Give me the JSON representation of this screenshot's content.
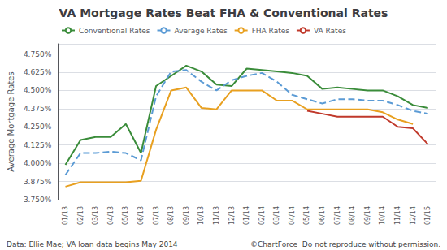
{
  "chart_data": {
    "type": "line",
    "title": "VA Mortgage Rates Beat FHA & Conventional Rates",
    "y_label": "Average Mortgage Rates",
    "annotations": [
      "Data: Ellie Mae; VA loan data begins May 2014",
      "©ChartForce  Do not reproduce without permission."
    ],
    "categories": [
      "01/13",
      "02/13",
      "03/13",
      "04/13",
      "05/13",
      "06/13",
      "07/13",
      "08/13",
      "09/13",
      "10/13",
      "11/13",
      "12/13",
      "01/14",
      "02/14",
      "03/14",
      "04/14",
      "05/14",
      "06/14",
      "07/14",
      "08/14",
      "09/14",
      "10/14",
      "11/14",
      "12/14",
      "01/15"
    ],
    "series": [
      {
        "name": "Conventional Rates",
        "color": "#3a8c3a",
        "line_style": "solid",
        "values": [
          3.99,
          4.16,
          4.18,
          4.18,
          4.27,
          4.07,
          4.53,
          4.6,
          4.67,
          4.63,
          4.54,
          4.53,
          4.65,
          4.64,
          4.63,
          4.62,
          4.6,
          4.51,
          4.52,
          4.51,
          4.5,
          4.5,
          4.46,
          4.4,
          4.38
        ]
      },
      {
        "name": "Average Rates",
        "color": "#5b9bd5",
        "line_style": "dashed",
        "values": [
          3.92,
          4.07,
          4.07,
          4.08,
          4.07,
          4.02,
          4.46,
          4.63,
          4.64,
          4.56,
          4.5,
          4.57,
          4.6,
          4.62,
          4.56,
          4.47,
          4.44,
          4.41,
          4.44,
          4.44,
          4.43,
          4.43,
          4.4,
          4.36,
          4.34
        ]
      },
      {
        "name": "FHA Rates",
        "color": "#e8a020",
        "line_style": "solid",
        "values": [
          3.84,
          3.87,
          3.87,
          3.87,
          3.87,
          3.88,
          4.23,
          4.5,
          4.52,
          4.38,
          4.37,
          4.5,
          4.5,
          4.5,
          4.43,
          4.43,
          4.37,
          4.37,
          4.37,
          4.37,
          4.37,
          4.35,
          4.3,
          4.27,
          null
        ]
      },
      {
        "name": "VA Rates",
        "color": "#c0392b",
        "line_style": "solid",
        "values": [
          null,
          null,
          null,
          null,
          null,
          null,
          null,
          null,
          null,
          null,
          null,
          null,
          null,
          null,
          null,
          null,
          4.36,
          4.34,
          4.32,
          4.32,
          4.32,
          4.32,
          4.25,
          4.24,
          4.13
        ]
      }
    ],
    "ylim": [
      3.75,
      4.82
    ],
    "yticks": [
      {
        "value": 3.75,
        "label": "3.750%"
      },
      {
        "value": 3.875,
        "label": "3.875%"
      },
      {
        "value": 4.0,
        "label": "4.000%"
      },
      {
        "value": 4.125,
        "label": "4.125%"
      },
      {
        "value": 4.25,
        "label": "4.250%"
      },
      {
        "value": 4.375,
        "label": "4.375%"
      },
      {
        "value": 4.5,
        "label": "4.500%"
      },
      {
        "value": 4.625,
        "label": "4.625%"
      },
      {
        "value": 4.75,
        "label": "4.750%"
      }
    ],
    "grid": true,
    "legend": "upper left"
  }
}
